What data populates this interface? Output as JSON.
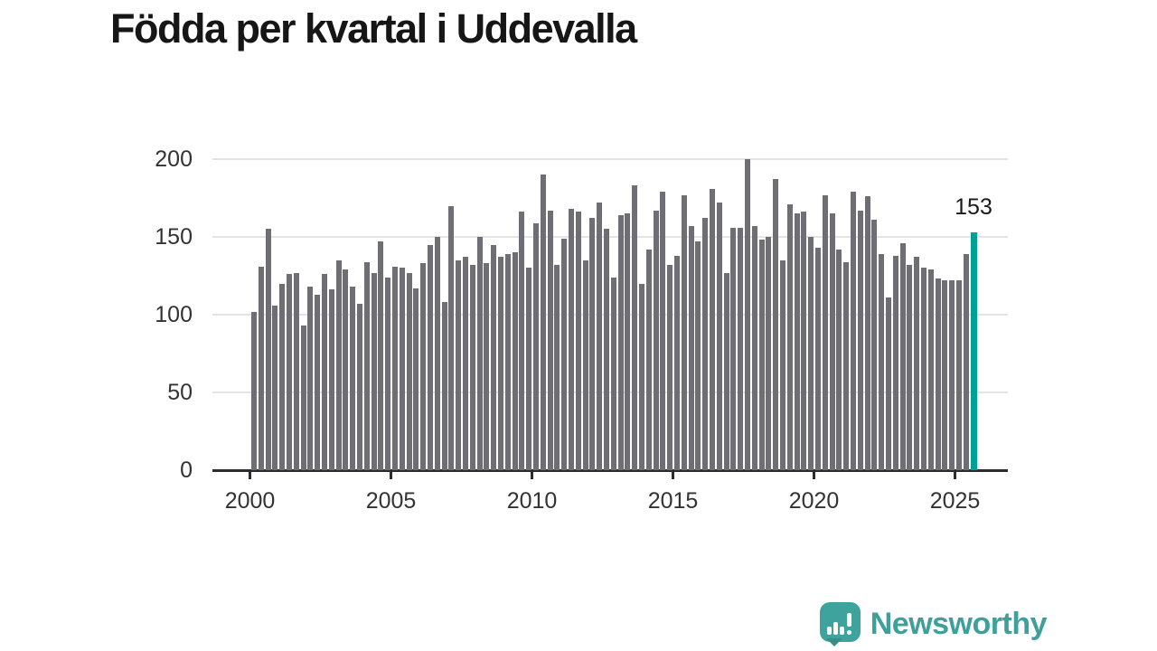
{
  "title": "Födda per kvartal i Uddevalla",
  "chart_data": {
    "type": "bar",
    "title": "Födda per kvartal i Uddevalla",
    "xlabel": "",
    "ylabel": "",
    "x_start": "2000 Q1",
    "x_end": "2025 Q3",
    "frequency": "quarterly",
    "values": [
      102,
      131,
      155,
      106,
      120,
      126,
      127,
      93,
      118,
      113,
      126,
      116,
      135,
      129,
      118,
      107,
      134,
      127,
      147,
      124,
      131,
      130,
      127,
      117,
      133,
      145,
      150,
      108,
      170,
      135,
      137,
      132,
      150,
      133,
      145,
      137,
      139,
      140,
      166,
      130,
      159,
      190,
      167,
      132,
      149,
      168,
      166,
      135,
      162,
      172,
      155,
      124,
      164,
      165,
      183,
      120,
      142,
      167,
      179,
      132,
      138,
      177,
      157,
      147,
      162,
      181,
      172,
      127,
      156,
      156,
      200,
      157,
      148,
      150,
      187,
      135,
      171,
      165,
      166,
      150,
      143,
      177,
      165,
      142,
      134,
      179,
      167,
      176,
      161,
      139,
      111,
      138,
      146,
      132,
      137,
      130,
      129,
      123,
      122,
      122,
      122,
      139,
      153
    ],
    "x_tick_labels": [
      "2000",
      "2005",
      "2010",
      "2015",
      "2020",
      "2025"
    ],
    "y_ticks": [
      0,
      50,
      100,
      150,
      200
    ],
    "ylim": [
      0,
      200
    ],
    "grid": "horizontal",
    "legend": "none",
    "highlight_index": 102,
    "annotation_label": "153",
    "bar_color": "#6e6e74",
    "highlight_color": "#00a097",
    "gridline_color": "#e4e4e4",
    "axis_color": "#2d2d2d",
    "tick_label_color": "#333333"
  },
  "logo": {
    "text": "Newsworthy",
    "icon": "newsworthy-speech-bubble-chart-icon",
    "color": "#3fa09b"
  },
  "colors": {
    "background": "#ffffff",
    "title": "#161616",
    "annotation": "#1a1a1a"
  }
}
